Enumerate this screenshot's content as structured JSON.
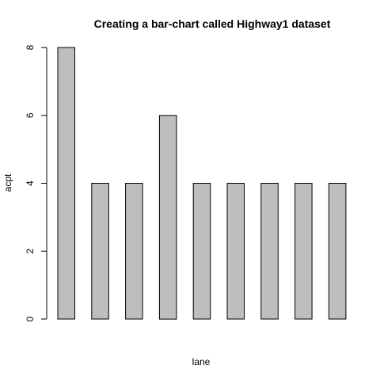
{
  "chart_data": {
    "type": "bar",
    "title": "Creating a bar-chart called Highway1 dataset",
    "xlabel": "lane",
    "ylabel": "acpt",
    "values": [
      8,
      4,
      4,
      6,
      4,
      4,
      4,
      4,
      4
    ],
    "ylim": [
      0,
      8
    ],
    "yticks": [
      0,
      2,
      4,
      6,
      8
    ],
    "bar_color": "#bebebe",
    "grid": false
  }
}
